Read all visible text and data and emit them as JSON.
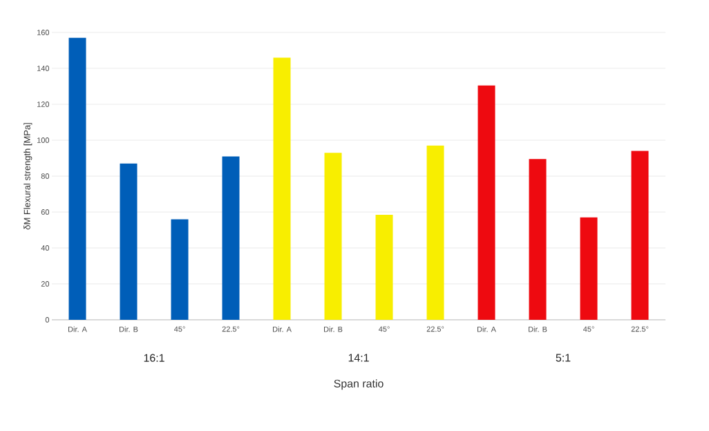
{
  "chart_data": {
    "type": "bar",
    "xlabel": "Span ratio",
    "ylabel": "δM Flexural strength [MPa]",
    "categories": [
      "Dir. A",
      "Dir. B",
      "45°",
      "22.5°",
      "Dir. A",
      "Dir. B",
      "45°",
      "22.5°",
      "Dir. A",
      "Dir. B",
      "45°",
      "22.5°"
    ],
    "series": [
      {
        "color": "#005eb8",
        "values": [
          157,
          87,
          56,
          91,
          null,
          null,
          null,
          null,
          null,
          null,
          null,
          null
        ]
      },
      {
        "color": "#f8ee00",
        "values": [
          null,
          null,
          null,
          null,
          146,
          93,
          58.5,
          97,
          null,
          null,
          null,
          null
        ]
      },
      {
        "color": "#ee0a10",
        "values": [
          null,
          null,
          null,
          null,
          null,
          null,
          null,
          null,
          130.5,
          89.5,
          57,
          94
        ]
      }
    ],
    "annotations": [
      "16:1",
      "14:1",
      "5:1"
    ],
    "ylim": [
      0,
      160
    ],
    "yticks": [
      0,
      20,
      40,
      60,
      80,
      100,
      120,
      140,
      160
    ],
    "grid": "y"
  }
}
